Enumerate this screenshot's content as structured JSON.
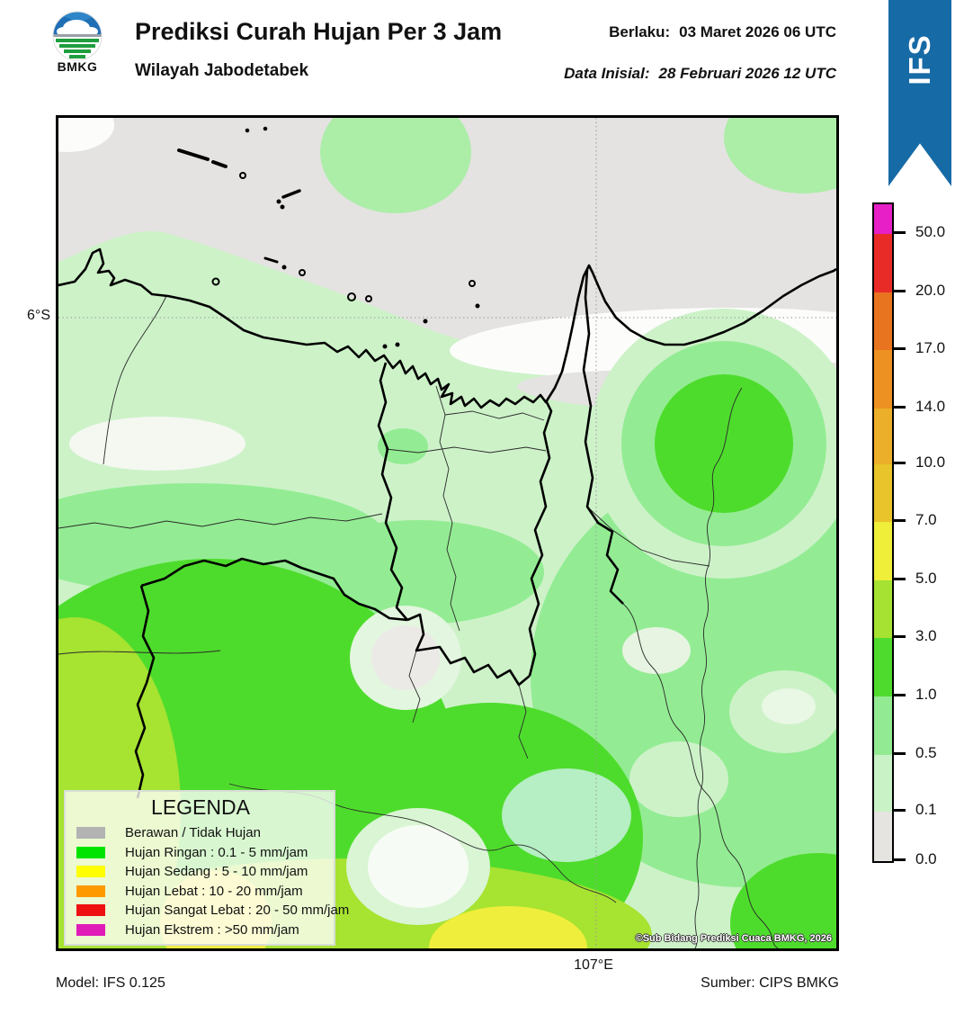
{
  "header": {
    "logo_text": "BMKG",
    "title": "Prediksi Curah Hujan Per 3 Jam",
    "subtitle": "Wilayah Jabodetabek",
    "valid_label": "Berlaku:",
    "valid_value": "03 Maret 2026 06 UTC",
    "init_label": "Data Inisial:",
    "init_value": "28 Februari 2026 12 UTC",
    "ribbon_label": "IFS",
    "ribbon_color": "#166aa5"
  },
  "map": {
    "lat_label": "6°S",
    "lon_label": "107°E",
    "copyright": "©Sub Bidang Prediksi Cuaca BMKG, 2026",
    "palette": {
      "no_rain_gray": "#e4e3e1",
      "rain_0_1_to_0_5": "#cdf2c8",
      "rain_0_5_to_1": "#93ec93",
      "rain_1_to_3": "#4edc2c",
      "rain_3_to_5": "#a7e331",
      "rain_5_to_7": "#f0ee3c"
    }
  },
  "legend": {
    "title": "LEGENDA",
    "items": [
      {
        "label": "Berawan / Tidak Hujan",
        "color": "#b3b3b3"
      },
      {
        "label": "Hujan Ringan : 0.1 - 5 mm/jam",
        "color": "#00e400"
      },
      {
        "label": "Hujan Sedang : 5 - 10 mm/jam",
        "color": "#ffff00"
      },
      {
        "label": "Hujan Lebat : 10 - 20 mm/jam",
        "color": "#ff9900"
      },
      {
        "label": "Hujan Sangat Lebat : 20 - 50 mm/jam",
        "color": "#ee1111"
      },
      {
        "label": "Hujan Ekstrem : >50 mm/jam",
        "color": "#e01bb8"
      }
    ]
  },
  "colorbar": {
    "tick_labels": [
      "50.0",
      "20.0",
      "17.0",
      "14.0",
      "10.0",
      "7.0",
      "5.0",
      "3.0",
      "1.0",
      "0.5",
      "0.1",
      "0.0"
    ],
    "segment_colors_top_to_bottom": [
      "#e620c6",
      "#e92b28",
      "#e8741f",
      "#ec9122",
      "#ecaf29",
      "#e9c42a",
      "#efee39",
      "#a5e231",
      "#4edb2d",
      "#92eb92",
      "#c9f2c6",
      "#e6e4e1"
    ]
  },
  "footer": {
    "model": "Model: IFS 0.125",
    "source": "Sumber: CIPS BMKG"
  }
}
